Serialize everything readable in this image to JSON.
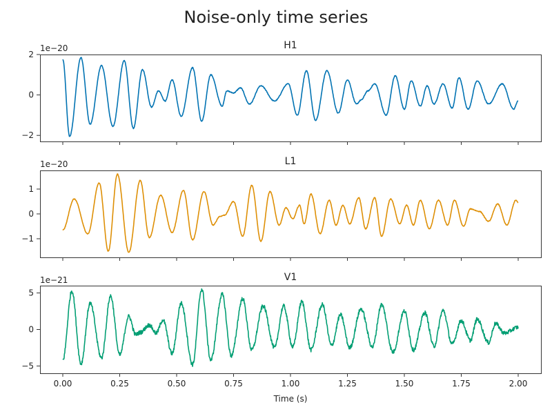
{
  "chart_data": {
    "type": "line",
    "title": "Noise-only time series",
    "xlabel": "Time (s)",
    "xlim": [
      -0.1,
      2.1
    ],
    "xticks": [
      "0.00",
      "0.25",
      "0.50",
      "0.75",
      "1.00",
      "1.25",
      "1.50",
      "1.75",
      "2.00"
    ],
    "xtick_values": [
      0.0,
      0.25,
      0.5,
      0.75,
      1.0,
      1.25,
      1.5,
      1.75,
      2.0
    ],
    "grid": false,
    "subplots": [
      {
        "name": "H1",
        "title": "H1",
        "color": "#0072b2",
        "offset_text": "1e−20",
        "ylim": [
          -2.3,
          2.0
        ],
        "yticks": [
          "−2",
          "0",
          "2"
        ],
        "ytick_values": [
          -2,
          0,
          2
        ],
        "noise": 0.02,
        "peaks": [
          [
            0.0,
            1.75
          ],
          [
            0.03,
            -2.05
          ],
          [
            0.08,
            1.85
          ],
          [
            0.12,
            -1.45
          ],
          [
            0.17,
            1.45
          ],
          [
            0.22,
            -1.55
          ],
          [
            0.27,
            1.7
          ],
          [
            0.31,
            -1.65
          ],
          [
            0.35,
            1.25
          ],
          [
            0.39,
            -0.6
          ],
          [
            0.42,
            0.2
          ],
          [
            0.45,
            -0.3
          ],
          [
            0.48,
            0.75
          ],
          [
            0.52,
            -1.05
          ],
          [
            0.57,
            1.35
          ],
          [
            0.61,
            -1.3
          ],
          [
            0.65,
            1.0
          ],
          [
            0.7,
            -0.55
          ],
          [
            0.72,
            0.2
          ],
          [
            0.75,
            0.1
          ],
          [
            0.78,
            0.35
          ],
          [
            0.82,
            -0.45
          ],
          [
            0.87,
            0.45
          ],
          [
            0.93,
            -0.3
          ],
          [
            0.99,
            0.55
          ],
          [
            1.03,
            -1.0
          ],
          [
            1.07,
            1.2
          ],
          [
            1.11,
            -1.25
          ],
          [
            1.16,
            1.2
          ],
          [
            1.21,
            -0.9
          ],
          [
            1.25,
            0.75
          ],
          [
            1.29,
            -0.45
          ],
          [
            1.31,
            -0.25
          ],
          [
            1.34,
            0.2
          ],
          [
            1.37,
            0.55
          ],
          [
            1.42,
            -1.0
          ],
          [
            1.46,
            0.95
          ],
          [
            1.5,
            -0.7
          ],
          [
            1.53,
            0.7
          ],
          [
            1.57,
            -0.55
          ],
          [
            1.6,
            0.45
          ],
          [
            1.63,
            -0.45
          ],
          [
            1.67,
            0.55
          ],
          [
            1.71,
            -0.65
          ],
          [
            1.74,
            0.85
          ],
          [
            1.78,
            -0.7
          ],
          [
            1.82,
            0.7
          ],
          [
            1.87,
            -0.45
          ],
          [
            1.93,
            0.55
          ],
          [
            1.98,
            -0.7
          ],
          [
            2.0,
            -0.3
          ]
        ]
      },
      {
        "name": "L1",
        "title": "L1",
        "color": "#de8f05",
        "offset_text": "1e−20",
        "ylim": [
          -1.75,
          1.75
        ],
        "yticks": [
          "−1",
          "0",
          "1"
        ],
        "ytick_values": [
          -1,
          0,
          1
        ],
        "noise": 0.015,
        "peaks": [
          [
            0.0,
            -0.65
          ],
          [
            0.05,
            0.6
          ],
          [
            0.11,
            -0.8
          ],
          [
            0.16,
            1.25
          ],
          [
            0.2,
            -1.5
          ],
          [
            0.24,
            1.6
          ],
          [
            0.29,
            -1.55
          ],
          [
            0.34,
            1.35
          ],
          [
            0.38,
            -0.95
          ],
          [
            0.43,
            0.75
          ],
          [
            0.48,
            -0.75
          ],
          [
            0.53,
            0.95
          ],
          [
            0.57,
            -1.05
          ],
          [
            0.62,
            0.9
          ],
          [
            0.66,
            -0.45
          ],
          [
            0.69,
            -0.1
          ],
          [
            0.71,
            -0.05
          ],
          [
            0.75,
            0.5
          ],
          [
            0.79,
            -0.9
          ],
          [
            0.83,
            1.15
          ],
          [
            0.87,
            -1.1
          ],
          [
            0.91,
            0.9
          ],
          [
            0.95,
            -0.45
          ],
          [
            0.98,
            0.25
          ],
          [
            1.01,
            -0.2
          ],
          [
            1.04,
            0.35
          ],
          [
            1.06,
            -0.4
          ],
          [
            1.09,
            0.8
          ],
          [
            1.13,
            -0.8
          ],
          [
            1.17,
            0.55
          ],
          [
            1.2,
            -0.45
          ],
          [
            1.23,
            0.35
          ],
          [
            1.26,
            -0.4
          ],
          [
            1.3,
            0.65
          ],
          [
            1.33,
            -0.6
          ],
          [
            1.37,
            0.65
          ],
          [
            1.4,
            -0.9
          ],
          [
            1.44,
            0.6
          ],
          [
            1.48,
            -0.4
          ],
          [
            1.51,
            0.35
          ],
          [
            1.54,
            -0.45
          ],
          [
            1.57,
            0.55
          ],
          [
            1.61,
            -0.6
          ],
          [
            1.65,
            0.55
          ],
          [
            1.69,
            -0.45
          ],
          [
            1.72,
            0.55
          ],
          [
            1.76,
            -0.5
          ],
          [
            1.79,
            0.2
          ],
          [
            1.83,
            0.1
          ],
          [
            1.87,
            -0.3
          ],
          [
            1.91,
            0.4
          ],
          [
            1.95,
            -0.45
          ],
          [
            1.99,
            0.55
          ],
          [
            2.0,
            0.45
          ]
        ]
      },
      {
        "name": "V1",
        "title": "V1",
        "color": "#029e73",
        "offset_text": "1e−21",
        "ylim": [
          -6.0,
          6.0
        ],
        "yticks": [
          "−5",
          "0",
          "5"
        ],
        "ytick_values": [
          -5,
          0,
          5
        ],
        "noise": 0.28,
        "peaks": [
          [
            0.0,
            -4.2
          ],
          [
            0.04,
            5.3
          ],
          [
            0.08,
            -4.7
          ],
          [
            0.12,
            3.6
          ],
          [
            0.17,
            -3.9
          ],
          [
            0.21,
            4.6
          ],
          [
            0.25,
            -3.5
          ],
          [
            0.29,
            1.8
          ],
          [
            0.32,
            -0.7
          ],
          [
            0.34,
            -0.4
          ],
          [
            0.38,
            0.6
          ],
          [
            0.41,
            -0.5
          ],
          [
            0.44,
            1.3
          ],
          [
            0.48,
            -3.3
          ],
          [
            0.52,
            3.6
          ],
          [
            0.57,
            -4.8
          ],
          [
            0.61,
            5.5
          ],
          [
            0.65,
            -4.2
          ],
          [
            0.7,
            4.8
          ],
          [
            0.74,
            -3.6
          ],
          [
            0.79,
            4.2
          ],
          [
            0.83,
            -2.8
          ],
          [
            0.88,
            3.2
          ],
          [
            0.93,
            -2.5
          ],
          [
            0.97,
            3.2
          ],
          [
            1.01,
            -2.4
          ],
          [
            1.05,
            3.8
          ],
          [
            1.09,
            -2.8
          ],
          [
            1.14,
            3.4
          ],
          [
            1.18,
            -2.2
          ],
          [
            1.22,
            2.0
          ],
          [
            1.26,
            -2.5
          ],
          [
            1.31,
            2.8
          ],
          [
            1.36,
            -2.4
          ],
          [
            1.4,
            3.4
          ],
          [
            1.45,
            -3.1
          ],
          [
            1.5,
            2.5
          ],
          [
            1.54,
            -2.8
          ],
          [
            1.59,
            2.3
          ],
          [
            1.63,
            -2.3
          ],
          [
            1.67,
            2.6
          ],
          [
            1.71,
            -2.0
          ],
          [
            1.75,
            1.2
          ],
          [
            1.79,
            -1.5
          ],
          [
            1.82,
            1.4
          ],
          [
            1.87,
            -1.8
          ],
          [
            1.9,
            0.8
          ],
          [
            1.94,
            -0.5
          ],
          [
            2.0,
            0.3
          ]
        ]
      }
    ]
  }
}
